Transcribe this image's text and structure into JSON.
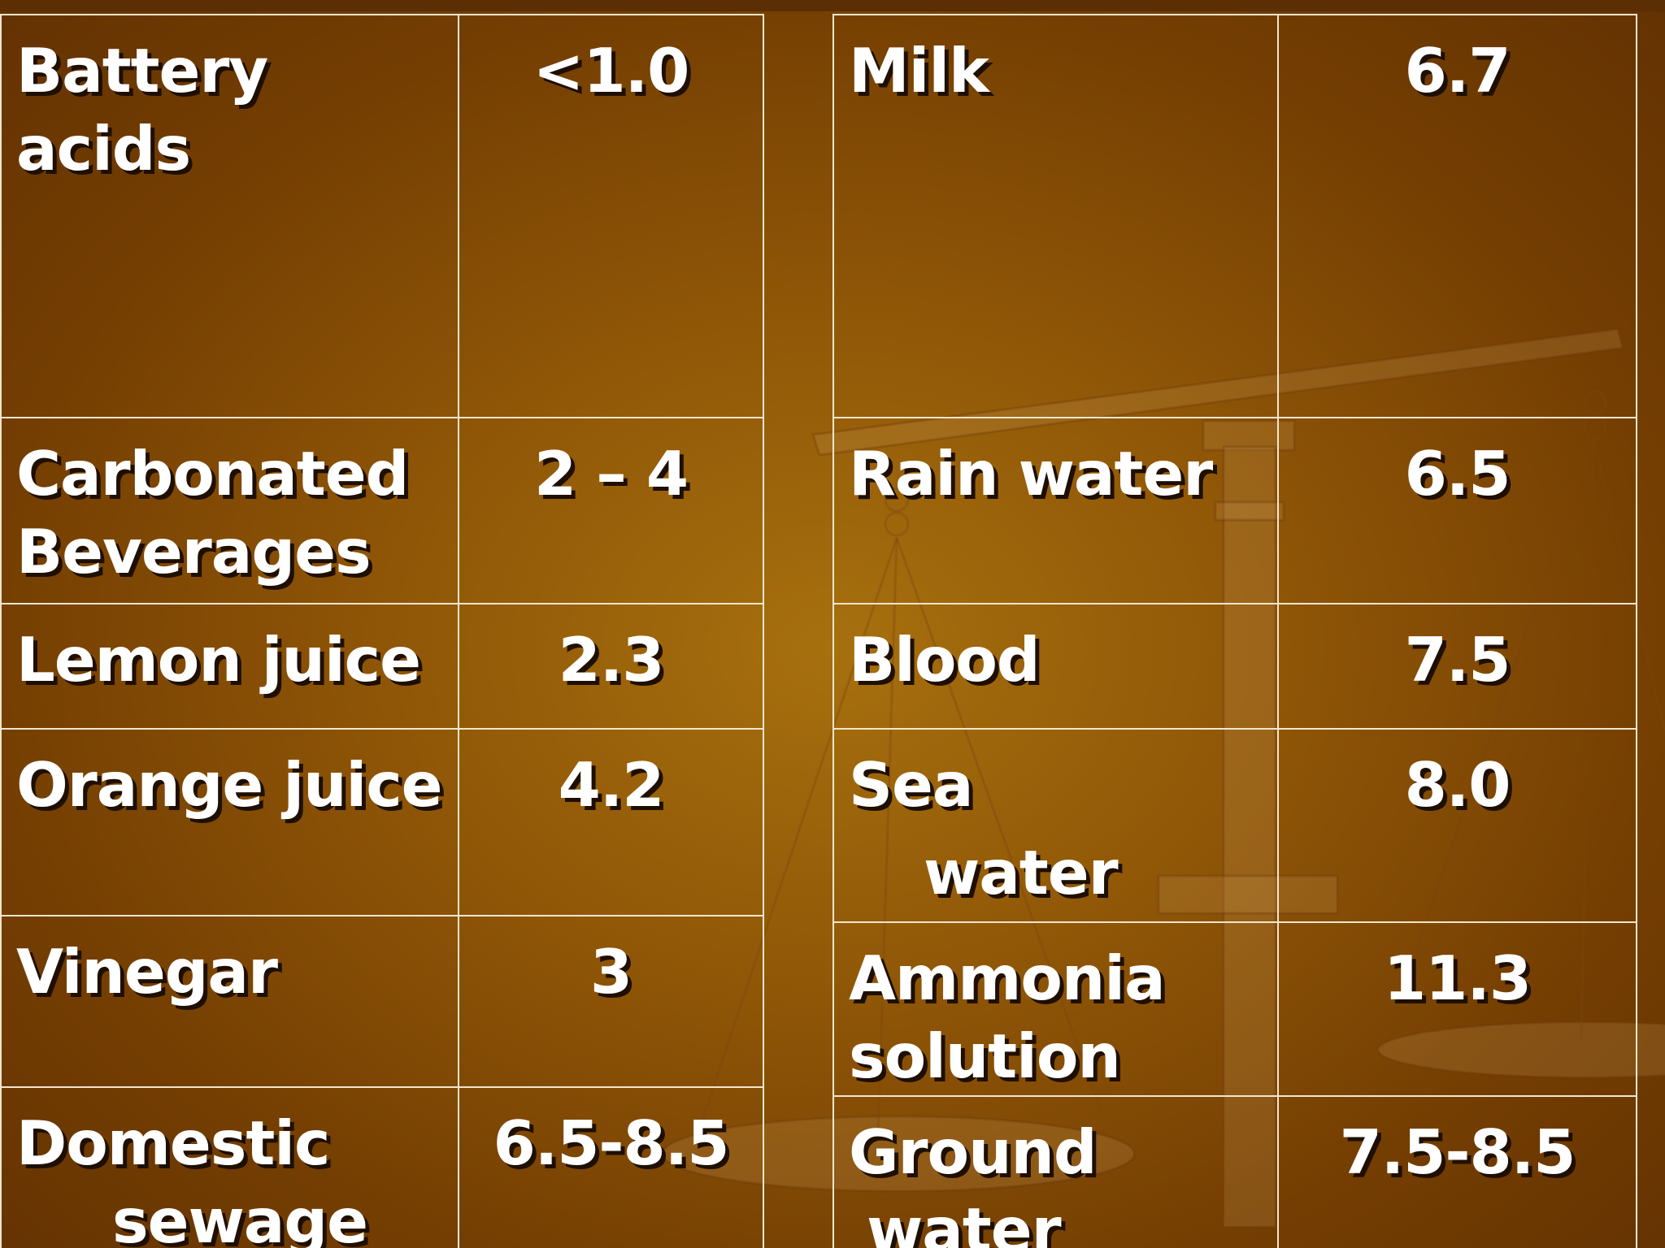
{
  "left_table": {
    "rows": [
      {
        "name_line1": "Battery",
        "name_line2": "acids",
        "value": "<1.0"
      },
      {
        "name_line1": "Carbonated",
        "name_line2": "Beverages",
        "value": "2 – 4"
      },
      {
        "name_line1": "Lemon juice",
        "name_line2": "",
        "value": "2.3"
      },
      {
        "name_line1": "Orange juice",
        "name_line2": "",
        "value": "4.2"
      },
      {
        "name_line1": "Vinegar",
        "name_line2": "",
        "value": "3"
      },
      {
        "name_line1": "Domestic",
        "name_line2": "sewage",
        "value": "6.5-8.5"
      }
    ]
  },
  "right_table": {
    "rows": [
      {
        "name_line1": "Milk",
        "name_line2": "",
        "value": "6.7"
      },
      {
        "name_line1": "Rain water",
        "name_line2": "",
        "value": "6.5"
      },
      {
        "name_line1": "Blood",
        "name_line2": "",
        "value": "7.5"
      },
      {
        "name_line1": "Sea",
        "name_line2": "water",
        "value": "8.0"
      },
      {
        "name_line1": "Ammonia",
        "name_line2": "solution",
        "value": "11.3"
      },
      {
        "name_line1": "Ground",
        "name_line2": "water",
        "value": "7.5-8.5"
      }
    ]
  },
  "colors": {
    "background": "#8f5607",
    "border": "#f3e6cc",
    "text": "#ffffff",
    "text_shadow": "#1e0f00"
  },
  "decoration": "balance-scale-watermark"
}
